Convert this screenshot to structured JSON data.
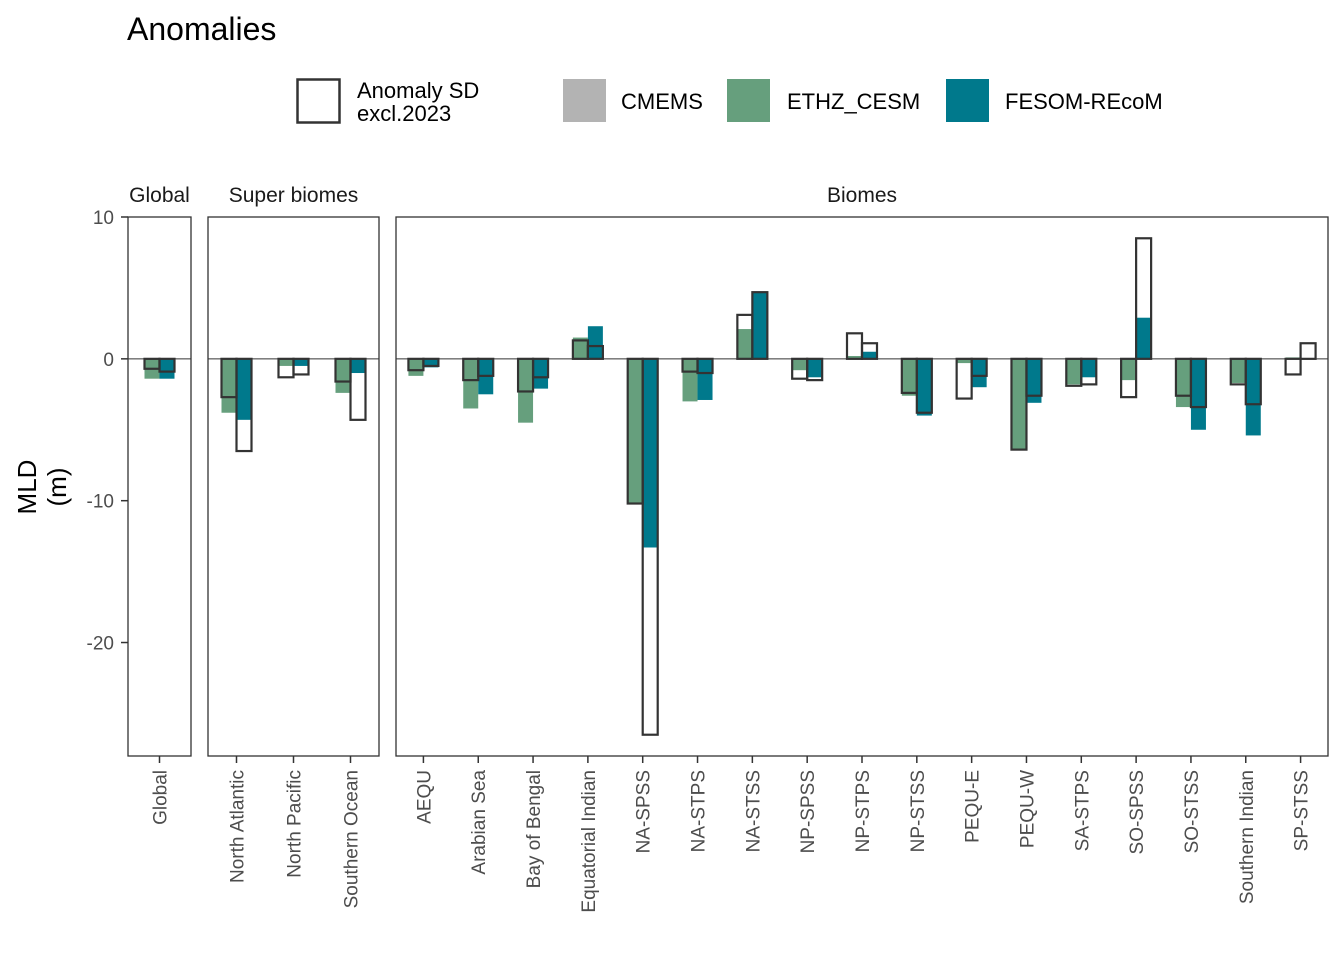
{
  "chart_data": {
    "type": "bar",
    "title": "Anomalies",
    "ylabel": "MLD\n(m)",
    "ylabel_lines": [
      "MLD",
      "(m)"
    ],
    "xlabel": "",
    "ylim": [
      -28,
      10
    ],
    "yticks": [
      10,
      0,
      -10,
      -20
    ],
    "legend_placement": "top",
    "legend": [
      {
        "key": "sd",
        "label_lines": [
          "Anomaly SD",
          "excl.2023"
        ],
        "style": "outline"
      },
      {
        "key": "CMEMS",
        "label": "CMEMS",
        "color": "#b3b3b3"
      },
      {
        "key": "ETHZ_CESM",
        "label": "ETHZ_CESM",
        "color": "#669f7d"
      },
      {
        "key": "FESOM-REcoM",
        "label": "FESOM-REcoM",
        "color": "#00798c"
      }
    ],
    "series_colors": {
      "ETHZ_CESM": "#669f7d",
      "FESOM-REcoM": "#00798c",
      "outline": "#333333"
    },
    "series": [
      {
        "name": "ETHZ_CESM",
        "color": "#669f7d"
      },
      {
        "name": "FESOM-REcoM",
        "color": "#00798c"
      }
    ],
    "panels": [
      {
        "name": "Global",
        "categories": [
          {
            "label": "Global",
            "ETHZ_CESM": -1.4,
            "ETHZ_CESM_sd": -0.7,
            "FESOM-REcoM": -1.4,
            "FESOM-REcoM_sd": -0.9
          }
        ]
      },
      {
        "name": "Super biomes",
        "categories": [
          {
            "label": "North Atlantic",
            "ETHZ_CESM": -3.8,
            "ETHZ_CESM_sd": -2.7,
            "FESOM-REcoM": -4.3,
            "FESOM-REcoM_sd": -6.5
          },
          {
            "label": "North Pacific",
            "ETHZ_CESM": -0.5,
            "ETHZ_CESM_sd": -1.3,
            "FESOM-REcoM": -0.5,
            "FESOM-REcoM_sd": -1.1
          },
          {
            "label": "Southern Ocean",
            "ETHZ_CESM": -2.4,
            "ETHZ_CESM_sd": -1.6,
            "FESOM-REcoM": -1.0,
            "FESOM-REcoM_sd": -4.3
          }
        ]
      },
      {
        "name": "Biomes",
        "categories": [
          {
            "label": "AEQU",
            "ETHZ_CESM": -1.2,
            "ETHZ_CESM_sd": -0.8,
            "FESOM-REcoM": -0.6,
            "FESOM-REcoM_sd": -0.5
          },
          {
            "label": "Arabian Sea",
            "ETHZ_CESM": -3.5,
            "ETHZ_CESM_sd": -1.5,
            "FESOM-REcoM": -2.5,
            "FESOM-REcoM_sd": -1.2
          },
          {
            "label": "Bay of Bengal",
            "ETHZ_CESM": -4.5,
            "ETHZ_CESM_sd": -2.3,
            "FESOM-REcoM": -2.1,
            "FESOM-REcoM_sd": -1.3
          },
          {
            "label": "Equatorial Indian",
            "ETHZ_CESM": 1.5,
            "ETHZ_CESM_sd": 1.3,
            "FESOM-REcoM": 2.3,
            "FESOM-REcoM_sd": 0.9
          },
          {
            "label": "NA-SPSS",
            "ETHZ_CESM": -10.2,
            "ETHZ_CESM_sd": -10.2,
            "FESOM-REcoM": -13.3,
            "FESOM-REcoM_sd": -26.5
          },
          {
            "label": "NA-STPS",
            "ETHZ_CESM": -3.0,
            "ETHZ_CESM_sd": -0.9,
            "FESOM-REcoM": -2.9,
            "FESOM-REcoM_sd": -1.0
          },
          {
            "label": "NA-STSS",
            "ETHZ_CESM": 2.1,
            "ETHZ_CESM_sd": 3.1,
            "FESOM-REcoM": 4.7,
            "FESOM-REcoM_sd": 4.7
          },
          {
            "label": "NP-SPSS",
            "ETHZ_CESM": -0.8,
            "ETHZ_CESM_sd": -1.4,
            "FESOM-REcoM": -1.3,
            "FESOM-REcoM_sd": -1.5
          },
          {
            "label": "NP-STPS",
            "ETHZ_CESM": 0.2,
            "ETHZ_CESM_sd": 1.8,
            "FESOM-REcoM": 0.5,
            "FESOM-REcoM_sd": 1.1
          },
          {
            "label": "NP-STSS",
            "ETHZ_CESM": -2.6,
            "ETHZ_CESM_sd": -2.4,
            "FESOM-REcoM": -4.0,
            "FESOM-REcoM_sd": -3.8
          },
          {
            "label": "PEQU-E",
            "ETHZ_CESM": -0.3,
            "ETHZ_CESM_sd": -2.8,
            "FESOM-REcoM": -2.0,
            "FESOM-REcoM_sd": -1.2
          },
          {
            "label": "PEQU-W",
            "ETHZ_CESM": -6.4,
            "ETHZ_CESM_sd": -6.4,
            "FESOM-REcoM": -3.1,
            "FESOM-REcoM_sd": -2.6
          },
          {
            "label": "SA-STPS",
            "ETHZ_CESM": -1.8,
            "ETHZ_CESM_sd": -1.9,
            "FESOM-REcoM": -1.3,
            "FESOM-REcoM_sd": -1.8
          },
          {
            "label": "SO-SPSS",
            "ETHZ_CESM": -1.5,
            "ETHZ_CESM_sd": -2.7,
            "FESOM-REcoM": 2.9,
            "FESOM-REcoM_sd": 8.5
          },
          {
            "label": "SO-STSS",
            "ETHZ_CESM": -3.4,
            "ETHZ_CESM_sd": -2.6,
            "FESOM-REcoM": -5.0,
            "FESOM-REcoM_sd": -3.4
          },
          {
            "label": "Southern Indian",
            "ETHZ_CESM": -1.7,
            "ETHZ_CESM_sd": -1.8,
            "FESOM-REcoM": -5.4,
            "FESOM-REcoM_sd": -3.2
          },
          {
            "label": "SP-STSS",
            "ETHZ_CESM": 0.1,
            "ETHZ_CESM_sd": -1.1,
            "FESOM-REcoM": 0.0,
            "FESOM-REcoM_sd": 1.1
          }
        ]
      }
    ]
  }
}
